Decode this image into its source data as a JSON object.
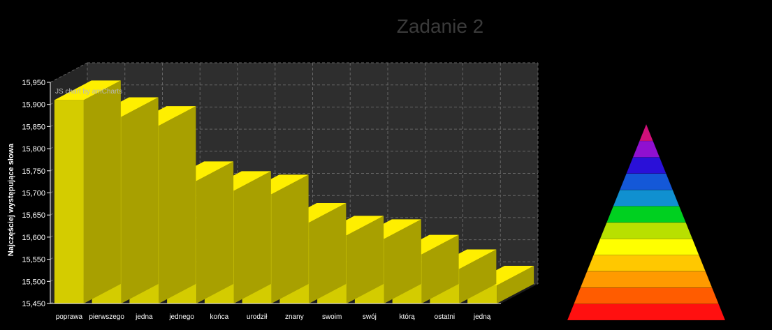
{
  "title": "Zadanie 2",
  "watermark": "JS chart by amCharts",
  "chart_data": [
    {
      "type": "bar",
      "style": "3d-columns",
      "ylabel": "Najczęściej występujące słowa",
      "xlabel": "",
      "ylim": [
        15450,
        15950
      ],
      "yticks": [
        "15,450",
        "15,500",
        "15,550",
        "15,600",
        "15,650",
        "15,700",
        "15,750",
        "15,800",
        "15,850",
        "15,900",
        "15,950"
      ],
      "categories": [
        "poprawa",
        "pierwszego",
        "jedna",
        "jednego",
        "końca",
        "urodził",
        "znany",
        "swoim",
        "swój",
        "którą",
        "ostatni",
        "jedną"
      ],
      "values": [
        15910,
        15872,
        15852,
        15727,
        15705,
        15697,
        15633,
        15604,
        15596,
        15561,
        15528,
        15491
      ],
      "grid": true,
      "colors": {
        "face": "#d4cc00",
        "top": "#ffef00",
        "side": "#a8a000",
        "plot_bg": "#2e2e2e",
        "grid": "#666666"
      }
    },
    {
      "type": "pyramid",
      "segments": 11,
      "colors": [
        "#ff1010",
        "#ff5c00",
        "#ff9a00",
        "#ffc800",
        "#ffff00",
        "#b8e000",
        "#00d020",
        "#1090d0",
        "#1458d8",
        "#2a10d8",
        "#9010d0",
        "#d0107a"
      ]
    }
  ]
}
